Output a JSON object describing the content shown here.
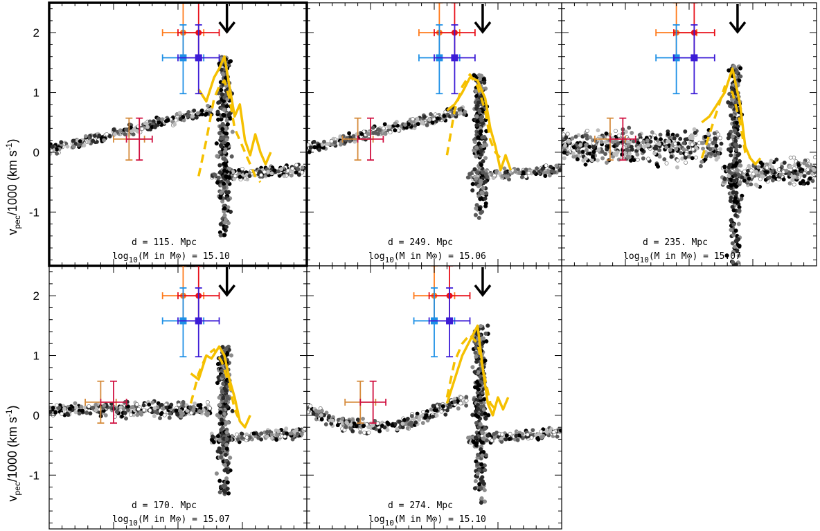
{
  "figure": {
    "ylabel": "v_pec/1000 (km s^-1)",
    "colors": {
      "profile": "#f5c000",
      "orange": "#ff7a1a",
      "red": "#e8101a",
      "blue": "#1e90e6",
      "indigo": "#3c1cd6",
      "tan": "#d58a3a",
      "crimson": "#d01040",
      "arrow": "#000000",
      "frame": "#000000"
    },
    "yticks": [
      "2",
      "1",
      "0",
      "-1"
    ]
  },
  "chart_data": [
    {
      "type": "scatter",
      "panel": 1,
      "highlighted": true,
      "ylim": [
        -1.9,
        2.5
      ],
      "distance_label": "d = 115. Mpc",
      "mass_label": "log10(M in M⊙) = 15.10",
      "arrow_x": 0.69,
      "peak": {
        "x": 0.68,
        "y": 1.6
      },
      "floor": -1.4,
      "left_data_label_x": 0.33,
      "error_bars_top": [
        {
          "x": 0.52,
          "y": 2.0,
          "xerr": 0.08,
          "yerr_hi": 0.5,
          "yerr_lo": 0.45,
          "color": "orange"
        },
        {
          "x": 0.58,
          "y": 2.0,
          "xerr": 0.08,
          "yerr_hi": 0.5,
          "yerr_lo": 0.45,
          "color": "red"
        },
        {
          "x": 0.52,
          "y": 1.58,
          "xerr": 0.08,
          "yerr_hi": 0.55,
          "yerr_lo": 0.6,
          "color": "blue"
        },
        {
          "x": 0.58,
          "y": 1.58,
          "xerr": 0.08,
          "yerr_hi": 0.55,
          "yerr_lo": 0.6,
          "color": "indigo"
        }
      ],
      "error_bars_low": [
        {
          "x": 0.31,
          "y": 0.22,
          "xerr": 0.06,
          "yerr_hi": 0.35,
          "yerr_lo": 0.35,
          "color": "tan"
        },
        {
          "x": 0.35,
          "y": 0.22,
          "xerr": 0.05,
          "yerr_hi": 0.35,
          "yerr_lo": 0.35,
          "color": "crimson"
        }
      ],
      "profile_solid": [
        [
          0.58,
          1.05
        ],
        [
          0.61,
          0.85
        ],
        [
          0.64,
          1.25
        ],
        [
          0.66,
          1.4
        ],
        [
          0.68,
          1.6
        ],
        [
          0.7,
          1.1
        ],
        [
          0.72,
          0.6
        ],
        [
          0.74,
          0.8
        ],
        [
          0.76,
          0.2
        ],
        [
          0.78,
          -0.05
        ],
        [
          0.8,
          0.3
        ],
        [
          0.82,
          0.0
        ],
        [
          0.84,
          -0.2
        ],
        [
          0.86,
          0.0
        ]
      ],
      "profile_dashed": [
        [
          0.58,
          -0.4
        ],
        [
          0.61,
          0.2
        ],
        [
          0.64,
          0.9
        ],
        [
          0.66,
          1.1
        ],
        [
          0.68,
          1.2
        ],
        [
          0.7,
          0.9
        ],
        [
          0.72,
          0.4
        ],
        [
          0.74,
          0.2
        ],
        [
          0.76,
          0.0
        ],
        [
          0.78,
          -0.2
        ],
        [
          0.8,
          -0.4
        ],
        [
          0.82,
          -0.5
        ]
      ]
    },
    {
      "type": "scatter",
      "panel": 2,
      "highlighted": false,
      "ylim": [
        -1.9,
        2.5
      ],
      "distance_label": "d = 249. Mpc",
      "mass_label": "log10(M in M⊙) = 15.06",
      "arrow_x": 0.69,
      "peak": {
        "x": 0.68,
        "y": 1.3
      },
      "floor": -1.1,
      "left_data_label_x": 0.2,
      "error_bars_top": [
        {
          "x": 0.52,
          "y": 2.0,
          "xerr": 0.08,
          "yerr_hi": 0.5,
          "yerr_lo": 0.45,
          "color": "orange"
        },
        {
          "x": 0.58,
          "y": 2.0,
          "xerr": 0.08,
          "yerr_hi": 0.5,
          "yerr_lo": 0.45,
          "color": "red"
        },
        {
          "x": 0.52,
          "y": 1.58,
          "xerr": 0.08,
          "yerr_hi": 0.55,
          "yerr_lo": 0.6,
          "color": "blue"
        },
        {
          "x": 0.58,
          "y": 1.58,
          "xerr": 0.08,
          "yerr_hi": 0.55,
          "yerr_lo": 0.6,
          "color": "indigo"
        }
      ],
      "error_bars_low": [
        {
          "x": 0.2,
          "y": 0.22,
          "xerr": 0.06,
          "yerr_hi": 0.35,
          "yerr_lo": 0.35,
          "color": "tan"
        },
        {
          "x": 0.25,
          "y": 0.22,
          "xerr": 0.05,
          "yerr_hi": 0.35,
          "yerr_lo": 0.35,
          "color": "crimson"
        }
      ],
      "profile_solid": [
        [
          0.55,
          0.7
        ],
        [
          0.58,
          0.8
        ],
        [
          0.61,
          1.0
        ],
        [
          0.64,
          1.25
        ],
        [
          0.67,
          1.2
        ],
        [
          0.7,
          0.9
        ],
        [
          0.72,
          0.4
        ],
        [
          0.74,
          0.1
        ],
        [
          0.76,
          -0.3
        ],
        [
          0.78,
          -0.05
        ],
        [
          0.8,
          -0.3
        ]
      ],
      "profile_dashed": [
        [
          0.55,
          -0.05
        ],
        [
          0.58,
          0.7
        ],
        [
          0.61,
          1.1
        ],
        [
          0.64,
          1.3
        ],
        [
          0.67,
          1.1
        ],
        [
          0.7,
          0.7
        ],
        [
          0.72,
          0.2
        ],
        [
          0.74,
          0.0
        ],
        [
          0.76,
          -0.1
        ]
      ]
    },
    {
      "type": "scatter",
      "panel": 3,
      "highlighted": false,
      "ylim": [
        -1.9,
        2.5
      ],
      "distance_label": "d = 235. Mpc",
      "mass_label": "log10(M in M⊙) = 15.07",
      "arrow_x": 0.69,
      "peak": {
        "x": 0.68,
        "y": 1.45
      },
      "floor": -1.9,
      "left_data_label_x": 0.18,
      "error_bars_top": [
        {
          "x": 0.45,
          "y": 2.0,
          "xerr": 0.08,
          "yerr_hi": 0.5,
          "yerr_lo": 0.45,
          "color": "orange"
        },
        {
          "x": 0.52,
          "y": 2.0,
          "xerr": 0.08,
          "yerr_hi": 0.5,
          "yerr_lo": 0.45,
          "color": "red"
        },
        {
          "x": 0.45,
          "y": 1.58,
          "xerr": 0.08,
          "yerr_hi": 0.55,
          "yerr_lo": 0.6,
          "color": "blue"
        },
        {
          "x": 0.52,
          "y": 1.58,
          "xerr": 0.08,
          "yerr_hi": 0.55,
          "yerr_lo": 0.6,
          "color": "indigo"
        }
      ],
      "error_bars_low": [
        {
          "x": 0.19,
          "y": 0.22,
          "xerr": 0.06,
          "yerr_hi": 0.35,
          "yerr_lo": 0.35,
          "color": "tan"
        },
        {
          "x": 0.24,
          "y": 0.22,
          "xerr": 0.05,
          "yerr_hi": 0.35,
          "yerr_lo": 0.35,
          "color": "crimson"
        }
      ],
      "profile_solid": [
        [
          0.55,
          0.5
        ],
        [
          0.58,
          0.6
        ],
        [
          0.61,
          0.8
        ],
        [
          0.64,
          1.0
        ],
        [
          0.67,
          1.4
        ],
        [
          0.7,
          0.8
        ],
        [
          0.72,
          0.1
        ],
        [
          0.74,
          -0.1
        ],
        [
          0.76,
          -0.2
        ],
        [
          0.78,
          -0.1
        ]
      ],
      "profile_dashed": [
        [
          0.55,
          -0.1
        ],
        [
          0.58,
          0.3
        ],
        [
          0.61,
          0.7
        ],
        [
          0.64,
          1.1
        ],
        [
          0.67,
          1.0
        ],
        [
          0.7,
          0.5
        ],
        [
          0.72,
          0.0
        ],
        [
          0.74,
          -0.1
        ]
      ]
    },
    {
      "type": "scatter",
      "panel": 4,
      "highlighted": false,
      "ylim": [
        -1.9,
        2.5
      ],
      "distance_label": "d = 170. Mpc",
      "mass_label": "log10(M in M⊙) = 15.07",
      "arrow_x": 0.69,
      "peak": {
        "x": 0.68,
        "y": 1.15
      },
      "floor": -1.4,
      "left_data_label_x": 0.2,
      "error_bars_top": [
        {
          "x": 0.52,
          "y": 2.0,
          "xerr": 0.08,
          "yerr_hi": 0.5,
          "yerr_lo": 0.45,
          "color": "orange"
        },
        {
          "x": 0.58,
          "y": 2.0,
          "xerr": 0.08,
          "yerr_hi": 0.5,
          "yerr_lo": 0.45,
          "color": "red"
        },
        {
          "x": 0.52,
          "y": 1.58,
          "xerr": 0.08,
          "yerr_hi": 0.55,
          "yerr_lo": 0.6,
          "color": "blue"
        },
        {
          "x": 0.58,
          "y": 1.58,
          "xerr": 0.08,
          "yerr_hi": 0.55,
          "yerr_lo": 0.6,
          "color": "indigo"
        }
      ],
      "error_bars_low": [
        {
          "x": 0.2,
          "y": 0.22,
          "xerr": 0.06,
          "yerr_hi": 0.35,
          "yerr_lo": 0.35,
          "color": "tan"
        },
        {
          "x": 0.25,
          "y": 0.22,
          "xerr": 0.05,
          "yerr_hi": 0.35,
          "yerr_lo": 0.35,
          "color": "crimson"
        }
      ],
      "profile_solid": [
        [
          0.55,
          0.7
        ],
        [
          0.58,
          0.6
        ],
        [
          0.61,
          1.0
        ],
        [
          0.63,
          0.95
        ],
        [
          0.66,
          1.15
        ],
        [
          0.68,
          1.0
        ],
        [
          0.7,
          0.6
        ],
        [
          0.72,
          0.3
        ],
        [
          0.74,
          -0.1
        ],
        [
          0.76,
          -0.2
        ],
        [
          0.78,
          0.0
        ]
      ],
      "profile_dashed": [
        [
          0.55,
          0.2
        ],
        [
          0.58,
          0.7
        ],
        [
          0.61,
          1.0
        ],
        [
          0.64,
          1.1
        ],
        [
          0.67,
          0.9
        ],
        [
          0.7,
          0.5
        ],
        [
          0.72,
          0.1
        ],
        [
          0.74,
          -0.1
        ]
      ]
    },
    {
      "type": "scatter",
      "panel": 5,
      "highlighted": false,
      "ylim": [
        -1.9,
        2.5
      ],
      "distance_label": "d = 274. Mpc",
      "mass_label": "log10(M in M⊙) = 15.10",
      "arrow_x": 0.69,
      "peak": {
        "x": 0.68,
        "y": 1.5
      },
      "floor": -1.5,
      "left_data_label_x": 0.2,
      "error_bars_top": [
        {
          "x": 0.5,
          "y": 2.0,
          "xerr": 0.08,
          "yerr_hi": 0.5,
          "yerr_lo": 0.45,
          "color": "orange"
        },
        {
          "x": 0.56,
          "y": 2.0,
          "xerr": 0.08,
          "yerr_hi": 0.5,
          "yerr_lo": 0.45,
          "color": "red"
        },
        {
          "x": 0.5,
          "y": 1.58,
          "xerr": 0.08,
          "yerr_hi": 0.55,
          "yerr_lo": 0.6,
          "color": "blue"
        },
        {
          "x": 0.56,
          "y": 1.58,
          "xerr": 0.08,
          "yerr_hi": 0.55,
          "yerr_lo": 0.6,
          "color": "indigo"
        }
      ],
      "error_bars_low": [
        {
          "x": 0.21,
          "y": 0.22,
          "xerr": 0.06,
          "yerr_hi": 0.35,
          "yerr_lo": 0.35,
          "color": "tan"
        },
        {
          "x": 0.26,
          "y": 0.22,
          "xerr": 0.05,
          "yerr_hi": 0.35,
          "yerr_lo": 0.35,
          "color": "crimson"
        }
      ],
      "profile_solid": [
        [
          0.55,
          0.2
        ],
        [
          0.58,
          0.6
        ],
        [
          0.61,
          1.0
        ],
        [
          0.64,
          1.25
        ],
        [
          0.67,
          1.5
        ],
        [
          0.69,
          0.8
        ],
        [
          0.71,
          0.2
        ],
        [
          0.73,
          0.0
        ],
        [
          0.75,
          0.3
        ],
        [
          0.77,
          0.1
        ],
        [
          0.79,
          0.3
        ]
      ],
      "profile_dashed": [
        [
          0.55,
          0.3
        ],
        [
          0.58,
          0.9
        ],
        [
          0.61,
          1.2
        ],
        [
          0.64,
          1.35
        ],
        [
          0.67,
          1.2
        ],
        [
          0.7,
          0.6
        ],
        [
          0.72,
          0.2
        ],
        [
          0.74,
          0.1
        ]
      ]
    }
  ]
}
